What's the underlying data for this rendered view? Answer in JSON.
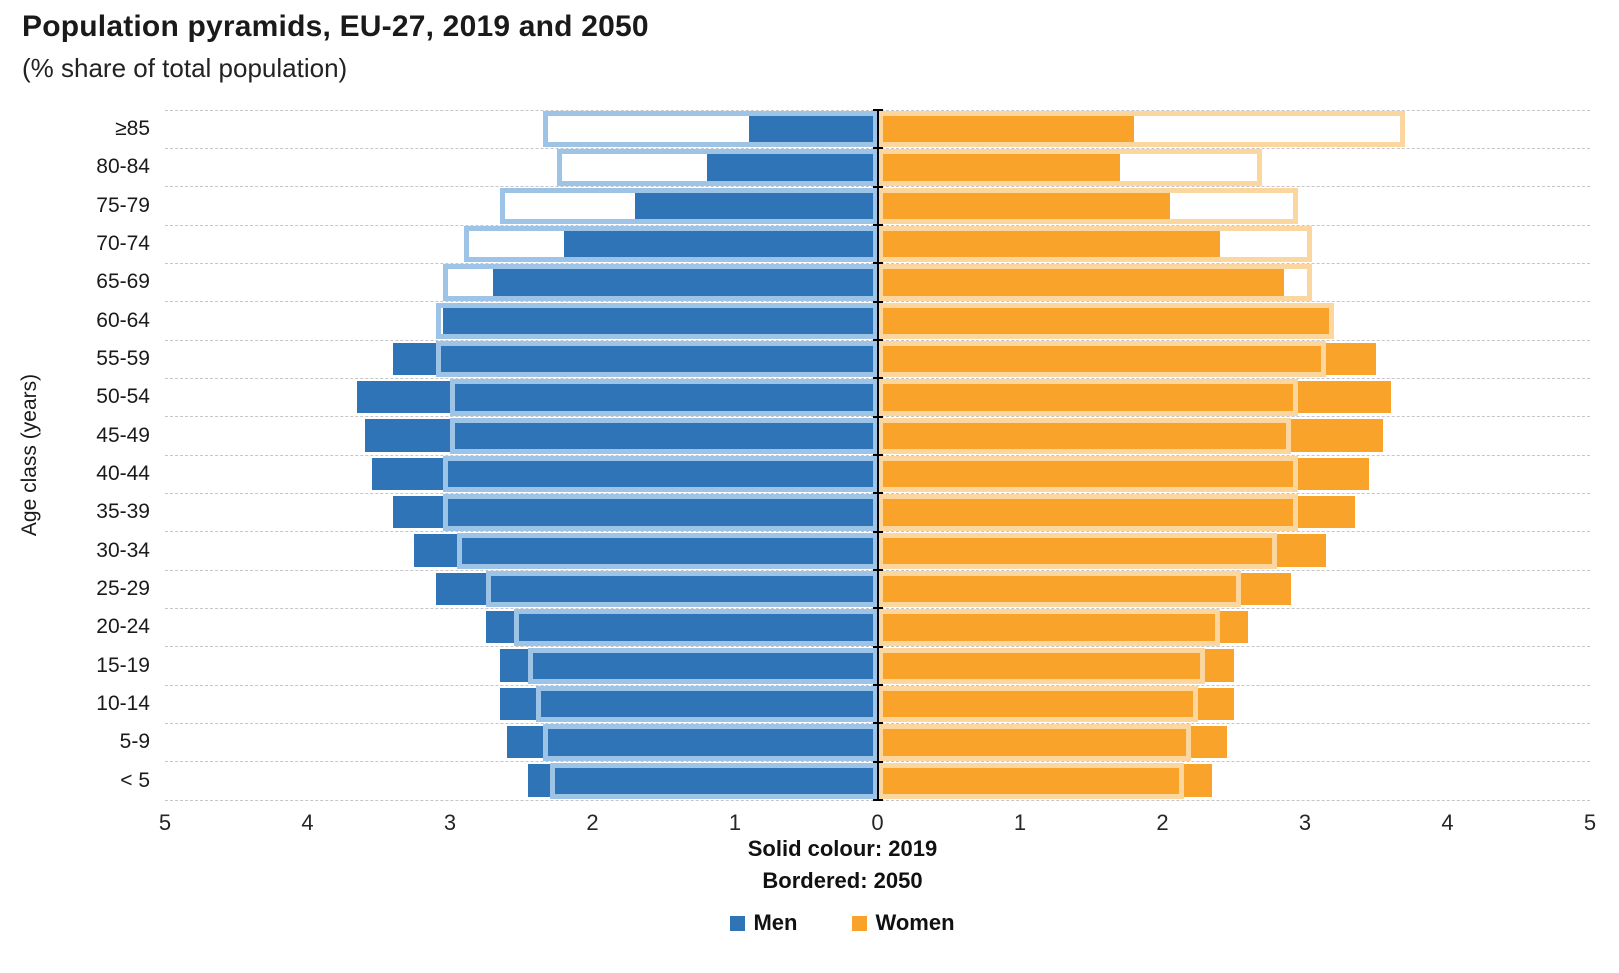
{
  "header": {
    "title": "Population pyramids, EU-27, 2019 and 2050",
    "subtitle": "(% share of total population)"
  },
  "chart_data": {
    "type": "bar",
    "variant": "population-pyramid",
    "title": "Population pyramids, EU-27, 2019 and 2050",
    "subtitle": "(% share of total population)",
    "ylabel": "Age class (years)",
    "xlabel": "",
    "grid": "horizontal-dashed",
    "categories_top_to_bottom": [
      "≥85",
      "80-84",
      "75-79",
      "70-74",
      "65-69",
      "60-64",
      "55-59",
      "50-54",
      "45-49",
      "40-44",
      "35-39",
      "30-34",
      "25-29",
      "20-24",
      "15-19",
      "10-14",
      "5-9",
      "< 5"
    ],
    "x_axis": {
      "tick_values": [
        -5,
        -4,
        -3,
        -2,
        -1,
        0,
        1,
        2,
        3,
        4,
        5
      ],
      "tick_labels": [
        "5",
        "4",
        "3",
        "2",
        "1",
        "0",
        "1",
        "2",
        "3",
        "4",
        "5"
      ],
      "xlim_abs": [
        0,
        5
      ],
      "unit": "% share of total population"
    },
    "series": [
      {
        "name": "Men 2019",
        "side": "left",
        "style": "solid",
        "color": "#2E74B6",
        "values": [
          0.9,
          1.2,
          1.7,
          2.2,
          2.7,
          3.05,
          3.4,
          3.65,
          3.6,
          3.55,
          3.4,
          3.25,
          3.1,
          2.75,
          2.65,
          2.65,
          2.6,
          2.45
        ]
      },
      {
        "name": "Men 2050",
        "side": "left",
        "style": "bordered",
        "border_color": "#9DC3E6",
        "values": [
          2.35,
          2.25,
          2.65,
          2.9,
          3.05,
          3.1,
          3.1,
          3.0,
          3.0,
          3.05,
          3.05,
          2.95,
          2.75,
          2.55,
          2.45,
          2.4,
          2.35,
          2.3
        ]
      },
      {
        "name": "Women 2019",
        "side": "right",
        "style": "solid",
        "color": "#F9A32A",
        "values": [
          1.8,
          1.7,
          2.05,
          2.4,
          2.85,
          3.2,
          3.5,
          3.6,
          3.55,
          3.45,
          3.35,
          3.15,
          2.9,
          2.6,
          2.5,
          2.5,
          2.45,
          2.35
        ]
      },
      {
        "name": "Women 2050",
        "side": "right",
        "style": "bordered",
        "border_color": "#FCD69F",
        "values": [
          3.7,
          2.7,
          2.95,
          3.05,
          3.05,
          3.2,
          3.15,
          2.95,
          2.9,
          2.95,
          2.95,
          2.8,
          2.55,
          2.4,
          2.3,
          2.25,
          2.2,
          2.15
        ]
      }
    ],
    "notes": [
      "Solid colour: 2019",
      "Bordered: 2050"
    ],
    "legend": [
      {
        "label": "Men",
        "color": "#2E74B6"
      },
      {
        "label": "Women",
        "color": "#F9A32A"
      }
    ],
    "legend_position": "bottom-center"
  }
}
